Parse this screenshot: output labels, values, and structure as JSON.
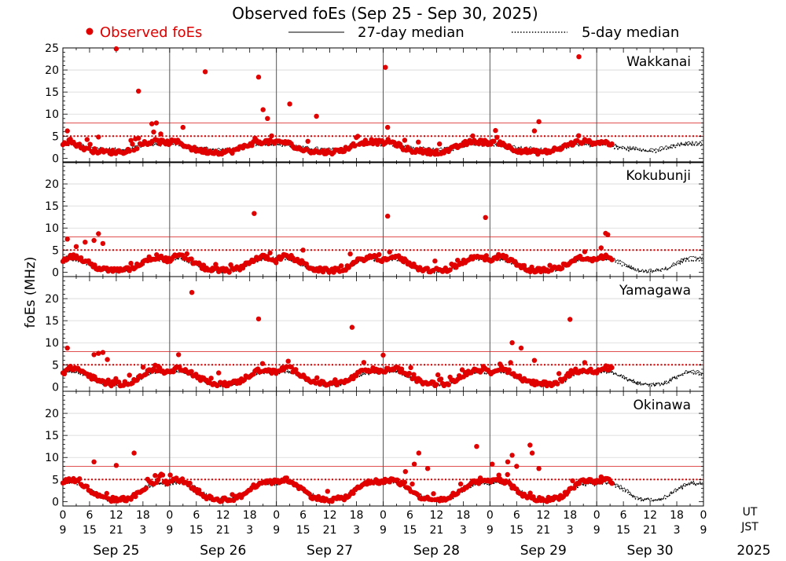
{
  "chart_data": {
    "type": "scatter",
    "title": "Observed foEs (Sep 25 - Sep 30, 2025)",
    "ylabel": "foEs (MHz)",
    "ylim": [
      -1,
      25
    ],
    "yticks": [
      0,
      5,
      10,
      15,
      20,
      25
    ],
    "top_panel_yticks": [
      0,
      5,
      10,
      15,
      20,
      25
    ],
    "lower_panel_yticks": [
      0,
      5,
      10,
      15,
      20
    ],
    "reference_lines": {
      "solid_red_mhz": 8,
      "dotted_red_mhz": 5
    },
    "legend": {
      "observed": "Observed foEs",
      "median27": "27-day median",
      "median5": "5-day median"
    },
    "x_ut_ticks": [
      "0",
      "6",
      "12",
      "18"
    ],
    "x_jst_ticks": [
      "9",
      "15",
      "21",
      "3"
    ],
    "ut_label": "UT",
    "jst_label": "JST",
    "year": "2025",
    "days": [
      "Sep 25",
      "Sep 26",
      "Sep 27",
      "Sep 28",
      "Sep 29",
      "Sep 30"
    ],
    "observed_days": 5.15,
    "panels": [
      {
        "station": "Wakkanai",
        "median27": [
          3.4,
          3.5,
          3.4,
          3.2,
          2.9,
          2.6,
          2.4,
          2.3,
          2.3,
          2.2,
          2.1,
          2.0,
          2.0,
          2.0,
          2.1,
          2.3,
          2.6,
          2.8,
          3.0,
          3.2,
          3.3,
          3.4,
          3.4,
          3.4
        ],
        "median5": [
          3.0,
          3.1,
          3.0,
          2.8,
          2.5,
          2.3,
          2.1,
          2.0,
          2.0,
          1.9,
          1.8,
          1.7,
          1.6,
          1.6,
          1.7,
          1.9,
          2.2,
          2.5,
          2.8,
          3.0,
          3.1,
          3.2,
          3.1,
          3.0
        ],
        "observed": [
          3.5,
          3.8,
          3.6,
          3.2,
          2.6,
          2.2,
          1.9,
          1.7,
          1.6,
          1.5,
          1.4,
          1.4,
          1.4,
          1.5,
          1.6,
          1.9,
          2.3,
          2.8,
          3.2,
          3.5,
          3.7,
          3.8,
          3.7,
          3.6
        ],
        "outliers": [
          {
            "day": 0,
            "hour": 1,
            "value": 6.2
          },
          {
            "day": 0,
            "hour": 8,
            "value": 4.8
          },
          {
            "day": 0,
            "hour": 12,
            "value": 24.8
          },
          {
            "day": 0,
            "hour": 17,
            "value": 15.2
          },
          {
            "day": 0,
            "hour": 20,
            "value": 7.8
          },
          {
            "day": 0,
            "hour": 21,
            "value": 8.0
          },
          {
            "day": 0,
            "hour": 22,
            "value": 5.5
          },
          {
            "day": 1,
            "hour": 3,
            "value": 7.0
          },
          {
            "day": 1,
            "hour": 8,
            "value": 19.6
          },
          {
            "day": 1,
            "hour": 20,
            "value": 18.4
          },
          {
            "day": 1,
            "hour": 21,
            "value": 11.0
          },
          {
            "day": 1,
            "hour": 22,
            "value": 9.0
          },
          {
            "day": 2,
            "hour": 3,
            "value": 12.3
          },
          {
            "day": 2,
            "hour": 9,
            "value": 9.5
          },
          {
            "day": 3,
            "hour": 0.5,
            "value": 20.6
          },
          {
            "day": 3,
            "hour": 1,
            "value": 7.0
          },
          {
            "day": 4,
            "hour": 11,
            "value": 8.3
          },
          {
            "day": 4,
            "hour": 20,
            "value": 23.0
          },
          {
            "day": 4,
            "hour": 10,
            "value": 6.2
          }
        ]
      },
      {
        "station": "Kokubunji",
        "median27": [
          3.1,
          3.3,
          3.3,
          3.1,
          2.8,
          2.4,
          2.0,
          1.5,
          1.0,
          0.6,
          0.4,
          0.3,
          0.3,
          0.3,
          0.4,
          0.6,
          1.0,
          1.6,
          2.2,
          2.7,
          3.0,
          3.2,
          3.2,
          3.1
        ],
        "median5": [
          2.8,
          3.0,
          3.0,
          2.8,
          2.4,
          2.0,
          1.6,
          1.2,
          0.8,
          0.5,
          0.3,
          0.2,
          0.2,
          0.2,
          0.3,
          0.5,
          0.8,
          1.3,
          1.9,
          2.4,
          2.7,
          2.9,
          2.9,
          2.8
        ],
        "observed": [
          2.6,
          3.4,
          3.6,
          3.5,
          3.0,
          2.5,
          2.0,
          1.4,
          0.9,
          0.6,
          0.5,
          0.4,
          0.4,
          0.4,
          0.5,
          0.7,
          1.1,
          1.7,
          2.4,
          2.9,
          3.2,
          3.4,
          3.3,
          3.0
        ],
        "outliers": [
          {
            "day": 0,
            "hour": 1,
            "value": 7.5
          },
          {
            "day": 0,
            "hour": 3,
            "value": 5.8
          },
          {
            "day": 0,
            "hour": 5,
            "value": 6.8
          },
          {
            "day": 0,
            "hour": 7,
            "value": 7.2
          },
          {
            "day": 0,
            "hour": 8,
            "value": 8.7
          },
          {
            "day": 0,
            "hour": 9,
            "value": 6.5
          },
          {
            "day": 1,
            "hour": 19,
            "value": 13.3
          },
          {
            "day": 2,
            "hour": 6,
            "value": 5.0
          },
          {
            "day": 3,
            "hour": 1,
            "value": 12.7
          },
          {
            "day": 3,
            "hour": 23,
            "value": 12.4
          },
          {
            "day": 5,
            "hour": 1,
            "value": 5.5
          },
          {
            "day": 5,
            "hour": 2,
            "value": 8.8
          },
          {
            "day": 5,
            "hour": 2.5,
            "value": 8.5
          }
        ]
      },
      {
        "station": "Yamagawa",
        "median27": [
          3.3,
          3.6,
          3.7,
          3.5,
          3.1,
          2.7,
          2.2,
          1.7,
          1.2,
          0.8,
          0.6,
          0.5,
          0.5,
          0.5,
          0.6,
          0.8,
          1.2,
          1.8,
          2.4,
          2.9,
          3.3,
          3.5,
          3.5,
          3.4
        ],
        "median5": [
          3.0,
          3.4,
          3.5,
          3.4,
          3.1,
          2.7,
          2.3,
          1.8,
          1.3,
          0.9,
          0.6,
          0.5,
          0.4,
          0.4,
          0.5,
          0.7,
          1.1,
          1.6,
          2.2,
          2.7,
          3.1,
          3.3,
          3.3,
          3.1
        ],
        "observed": [
          3.2,
          3.9,
          4.3,
          4.2,
          3.7,
          3.1,
          2.5,
          1.9,
          1.4,
          1.0,
          0.8,
          0.7,
          0.7,
          0.7,
          0.8,
          1.0,
          1.4,
          2.0,
          2.7,
          3.3,
          3.7,
          3.9,
          3.8,
          3.5
        ],
        "outliers": [
          {
            "day": 0,
            "hour": 1,
            "value": 8.8
          },
          {
            "day": 0,
            "hour": 7,
            "value": 7.3
          },
          {
            "day": 0,
            "hour": 8,
            "value": 7.6
          },
          {
            "day": 0,
            "hour": 9,
            "value": 7.8
          },
          {
            "day": 0,
            "hour": 10,
            "value": 6.2
          },
          {
            "day": 1,
            "hour": 2,
            "value": 7.3
          },
          {
            "day": 1,
            "hour": 5,
            "value": 21.4
          },
          {
            "day": 1,
            "hour": 20,
            "value": 15.4
          },
          {
            "day": 2,
            "hour": 17,
            "value": 13.5
          },
          {
            "day": 3,
            "hour": 0,
            "value": 7.2
          },
          {
            "day": 4,
            "hour": 5,
            "value": 10.0
          },
          {
            "day": 4,
            "hour": 7,
            "value": 8.8
          },
          {
            "day": 4,
            "hour": 18,
            "value": 15.3
          },
          {
            "day": 4,
            "hour": 10,
            "value": 6.0
          }
        ]
      },
      {
        "station": "Okinawa",
        "median27": [
          4.2,
          4.4,
          4.5,
          4.4,
          4.1,
          3.6,
          3.0,
          2.3,
          1.6,
          1.1,
          0.7,
          0.5,
          0.5,
          0.5,
          0.6,
          0.9,
          1.4,
          2.1,
          2.9,
          3.5,
          3.9,
          4.2,
          4.3,
          4.2
        ],
        "median5": [
          4.0,
          4.3,
          4.4,
          4.2,
          3.8,
          3.2,
          2.6,
          1.9,
          1.3,
          0.8,
          0.5,
          0.4,
          0.4,
          0.4,
          0.5,
          0.7,
          1.2,
          1.9,
          2.6,
          3.2,
          3.7,
          4.0,
          4.1,
          4.0
        ],
        "observed": [
          4.4,
          4.9,
          5.0,
          4.7,
          4.1,
          3.4,
          2.6,
          1.8,
          1.2,
          0.8,
          0.6,
          0.5,
          0.5,
          0.5,
          0.6,
          0.8,
          1.2,
          1.9,
          2.7,
          3.5,
          4.1,
          4.5,
          4.6,
          4.5
        ],
        "outliers": [
          {
            "day": 0,
            "hour": 7,
            "value": 9.0
          },
          {
            "day": 0,
            "hour": 12,
            "value": 8.2
          },
          {
            "day": 0,
            "hour": 16,
            "value": 11.0
          },
          {
            "day": 3,
            "hour": 5,
            "value": 6.8
          },
          {
            "day": 3,
            "hour": 7,
            "value": 8.5
          },
          {
            "day": 3,
            "hour": 8,
            "value": 11.0
          },
          {
            "day": 3,
            "hour": 10,
            "value": 7.5
          },
          {
            "day": 3,
            "hour": 21,
            "value": 12.5
          },
          {
            "day": 4,
            "hour": 0.5,
            "value": 8.5
          },
          {
            "day": 4,
            "hour": 2,
            "value": 6.0
          },
          {
            "day": 4,
            "hour": 4,
            "value": 9.0
          },
          {
            "day": 4,
            "hour": 5,
            "value": 10.5
          },
          {
            "day": 4,
            "hour": 6,
            "value": 8.0
          },
          {
            "day": 4,
            "hour": 9,
            "value": 12.8
          },
          {
            "day": 4,
            "hour": 9.5,
            "value": 11.0
          },
          {
            "day": 4,
            "hour": 11,
            "value": 7.5
          },
          {
            "day": 5,
            "hour": 1,
            "value": 5.6
          }
        ]
      }
    ]
  }
}
